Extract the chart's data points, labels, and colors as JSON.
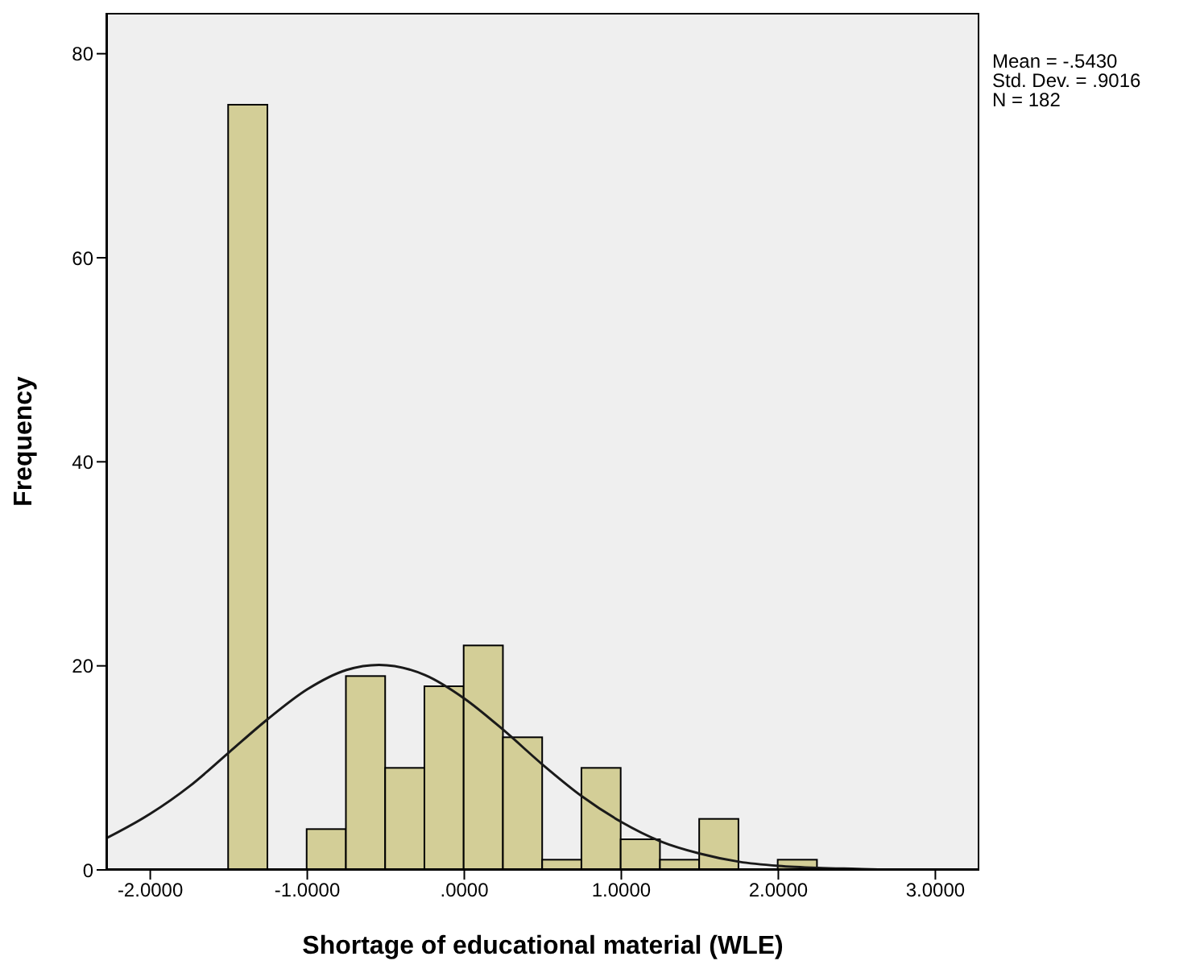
{
  "chart_data": {
    "type": "histogram",
    "xlabel": "Shortage of educational material (WLE)",
    "ylabel": "Frequency",
    "bins": [
      -1.5,
      -1.25,
      -1.0,
      -0.75,
      -0.5,
      -0.25,
      0,
      0.25,
      0.5,
      0.75,
      1.0,
      1.25,
      1.5,
      1.75,
      2.0,
      2.25
    ],
    "values": [
      75,
      0,
      4,
      19,
      10,
      18,
      22,
      13,
      1,
      10,
      3,
      1,
      5,
      0,
      1
    ],
    "color": "#d3ce97",
    "series": [
      {
        "type": "line",
        "color": "#1a1a1a",
        "x": [
          -2.28,
          -2.0,
          -1.75,
          -1.5,
          -1.25,
          -1.0,
          -0.75,
          -0.543,
          -0.25,
          0,
          0.25,
          0.5,
          0.75,
          1.0,
          1.25,
          1.5,
          1.75,
          2.0,
          2.25,
          2.5,
          2.75,
          3.0,
          3.28
        ],
        "values": [
          3.1,
          5.5,
          8.2,
          11.5,
          14.8,
          17.7,
          19.6,
          20.1,
          19.1,
          16.8,
          13.7,
          10.3,
          7.2,
          4.7,
          2.8,
          1.6,
          0.8,
          0.4,
          0.2,
          0.1,
          0,
          0,
          0
        ]
      }
    ],
    "xlim": [
      -2.28,
      3.28
    ],
    "xticks": [
      {
        "value": -2,
        "label": "-2.0000"
      },
      {
        "value": -1,
        "label": "-1.0000"
      },
      {
        "value": 0,
        "label": ".0000"
      },
      {
        "value": 1,
        "label": "1.0000"
      },
      {
        "value": 2,
        "label": "2.0000"
      },
      {
        "value": 3,
        "label": "3.0000"
      }
    ],
    "ylim": [
      0,
      84
    ],
    "yticks": [
      0,
      20,
      40,
      60,
      80
    ],
    "annotations": [
      "Mean = -.5430\nStd. Dev. = .9016\nN = 182"
    ],
    "grid": false
  }
}
